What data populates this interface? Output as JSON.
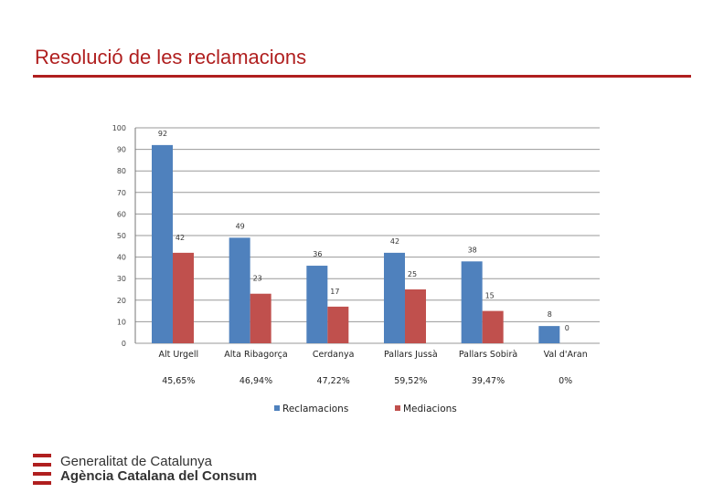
{
  "page": {
    "title": "Resolució de les reclamacions",
    "accent_color": "#b01f1f"
  },
  "chart_data": {
    "type": "bar",
    "categories": [
      "Alt Urgell",
      "Alta Ribagorça",
      "Cerdanya",
      "Pallars Jussà",
      "Pallars Sobirà",
      "Val d'Aran"
    ],
    "category_percentages": [
      "45,65%",
      "46,94%",
      "47,22%",
      "59,52%",
      "39,47%",
      "0%"
    ],
    "series": [
      {
        "name": "Reclamacions",
        "values": [
          92,
          49,
          36,
          42,
          38,
          8
        ],
        "color": "#4f81bd"
      },
      {
        "name": "Mediacions",
        "values": [
          42,
          23,
          17,
          25,
          15,
          0
        ],
        "color": "#c0504d"
      }
    ],
    "ylim": [
      0,
      100
    ],
    "yticks": [
      0,
      10,
      20,
      30,
      40,
      50,
      60,
      70,
      80,
      90,
      100
    ],
    "grid": true,
    "legend_position": "bottom"
  },
  "logo": {
    "line1": "Generalitat de Catalunya",
    "line2": "Agència Catalana del Consum",
    "icon": "senyera-icon"
  }
}
